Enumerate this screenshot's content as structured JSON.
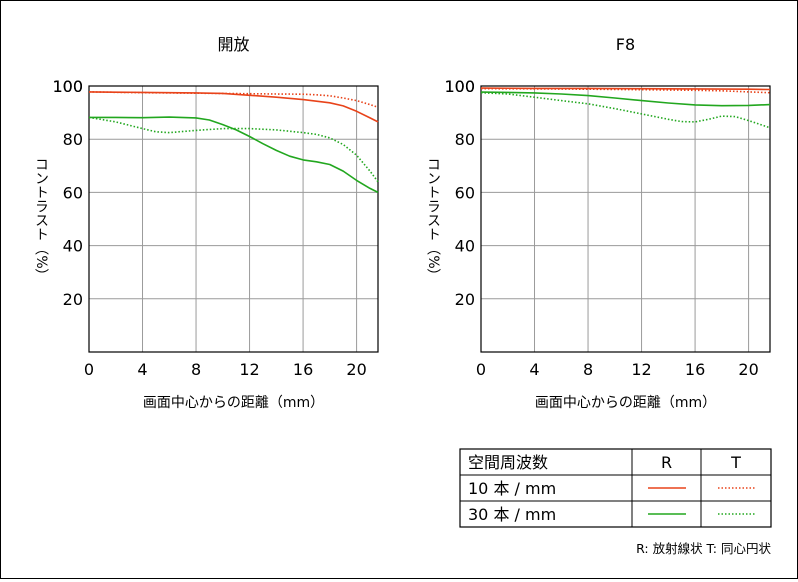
{
  "chart_data": [
    {
      "type": "line",
      "title": "開放",
      "xlabel": "画面中心からの距離（mm）",
      "ylabel": "コントラスト（%）",
      "xlim": [
        0,
        21.6
      ],
      "ylim": [
        0,
        100
      ],
      "xticks": [
        0,
        4,
        8,
        12,
        16,
        20
      ],
      "yticks": [
        20,
        40,
        60,
        80,
        100
      ],
      "grid": true,
      "series": [
        {
          "key": "10R",
          "color": "#e8431a",
          "dash": false,
          "points": [
            [
              0,
              97.8
            ],
            [
              4,
              97.6
            ],
            [
              8,
              97.4
            ],
            [
              10,
              97.2
            ],
            [
              12,
              96.5
            ],
            [
              14,
              95.8
            ],
            [
              16,
              94.9
            ],
            [
              18,
              93.7
            ],
            [
              19,
              92.5
            ],
            [
              20,
              90.5
            ],
            [
              21,
              88
            ],
            [
              21.6,
              86.5
            ]
          ]
        },
        {
          "key": "10T",
          "color": "#e8431a",
          "dash": true,
          "points": [
            [
              0,
              97.8
            ],
            [
              4,
              97.5
            ],
            [
              8,
              97.3
            ],
            [
              12,
              97.1
            ],
            [
              14,
              97
            ],
            [
              16,
              96.9
            ],
            [
              17,
              96.7
            ],
            [
              18,
              96.3
            ],
            [
              19,
              95.5
            ],
            [
              20,
              94.5
            ],
            [
              21,
              93
            ],
            [
              21.6,
              92
            ]
          ]
        },
        {
          "key": "30R",
          "color": "#22a71f",
          "dash": false,
          "points": [
            [
              0,
              88.2
            ],
            [
              2,
              88.2
            ],
            [
              4,
              88.1
            ],
            [
              6,
              88.3
            ],
            [
              8,
              88
            ],
            [
              9,
              87.2
            ],
            [
              10,
              85.5
            ],
            [
              11,
              83.5
            ],
            [
              12,
              81
            ],
            [
              13,
              78.3
            ],
            [
              14,
              75.8
            ],
            [
              15,
              73.6
            ],
            [
              16,
              72.2
            ],
            [
              17,
              71.5
            ],
            [
              18,
              70.5
            ],
            [
              19,
              68
            ],
            [
              20,
              64.5
            ],
            [
              21,
              61.5
            ],
            [
              21.6,
              60
            ]
          ]
        },
        {
          "key": "30T",
          "color": "#22a71f",
          "dash": true,
          "points": [
            [
              0,
              88.2
            ],
            [
              2,
              86.5
            ],
            [
              4,
              84
            ],
            [
              5,
              82.8
            ],
            [
              6,
              82.5
            ],
            [
              8,
              83.3
            ],
            [
              10,
              84
            ],
            [
              12,
              84
            ],
            [
              14,
              83.5
            ],
            [
              16,
              82.5
            ],
            [
              17,
              81.8
            ],
            [
              18,
              80.5
            ],
            [
              19,
              78
            ],
            [
              20,
              74
            ],
            [
              21,
              68
            ],
            [
              21.6,
              64
            ]
          ]
        }
      ]
    },
    {
      "type": "line",
      "title": "F8",
      "xlabel": "画面中心からの距離（mm）",
      "ylabel": "コントラスト（%）",
      "xlim": [
        0,
        21.6
      ],
      "ylim": [
        0,
        100
      ],
      "xticks": [
        0,
        4,
        8,
        12,
        16,
        20
      ],
      "yticks": [
        20,
        40,
        60,
        80,
        100
      ],
      "grid": true,
      "series": [
        {
          "key": "10R",
          "color": "#e8431a",
          "dash": false,
          "points": [
            [
              0,
              99.2
            ],
            [
              4,
              99.1
            ],
            [
              8,
              99.1
            ],
            [
              12,
              99
            ],
            [
              16,
              98.9
            ],
            [
              20,
              98.8
            ],
            [
              21.6,
              98.7
            ]
          ]
        },
        {
          "key": "10T",
          "color": "#e8431a",
          "dash": true,
          "points": [
            [
              0,
              99
            ],
            [
              4,
              98.9
            ],
            [
              8,
              98.8
            ],
            [
              12,
              98.6
            ],
            [
              16,
              98.4
            ],
            [
              18,
              98.2
            ],
            [
              20,
              97.8
            ],
            [
              21.6,
              97.5
            ]
          ]
        },
        {
          "key": "30R",
          "color": "#22a71f",
          "dash": false,
          "points": [
            [
              0,
              97.7
            ],
            [
              2,
              97.6
            ],
            [
              4,
              97.4
            ],
            [
              6,
              97
            ],
            [
              8,
              96.4
            ],
            [
              10,
              95.5
            ],
            [
              12,
              94.5
            ],
            [
              14,
              93.6
            ],
            [
              16,
              92.9
            ],
            [
              18,
              92.6
            ],
            [
              20,
              92.7
            ],
            [
              21.6,
              93
            ]
          ]
        },
        {
          "key": "30T",
          "color": "#22a71f",
          "dash": true,
          "points": [
            [
              0,
              97.5
            ],
            [
              2,
              97
            ],
            [
              4,
              95.8
            ],
            [
              6,
              94.5
            ],
            [
              8,
              93.3
            ],
            [
              10,
              91.5
            ],
            [
              12,
              89.5
            ],
            [
              14,
              87.5
            ],
            [
              15,
              86.6
            ],
            [
              16,
              86.5
            ],
            [
              17,
              87.5
            ],
            [
              18,
              88.7
            ],
            [
              19,
              88.5
            ],
            [
              20,
              87
            ],
            [
              21,
              85.3
            ],
            [
              21.6,
              84.3
            ]
          ]
        }
      ]
    }
  ],
  "legend": {
    "header": [
      "空間周波数",
      "R",
      "T"
    ],
    "rows": [
      {
        "label": "10 本 / mm",
        "color": "#e8431a"
      },
      {
        "label": "30 本 / mm",
        "color": "#22a71f"
      }
    ],
    "note": "R: 放射線状  T: 同心円状"
  }
}
